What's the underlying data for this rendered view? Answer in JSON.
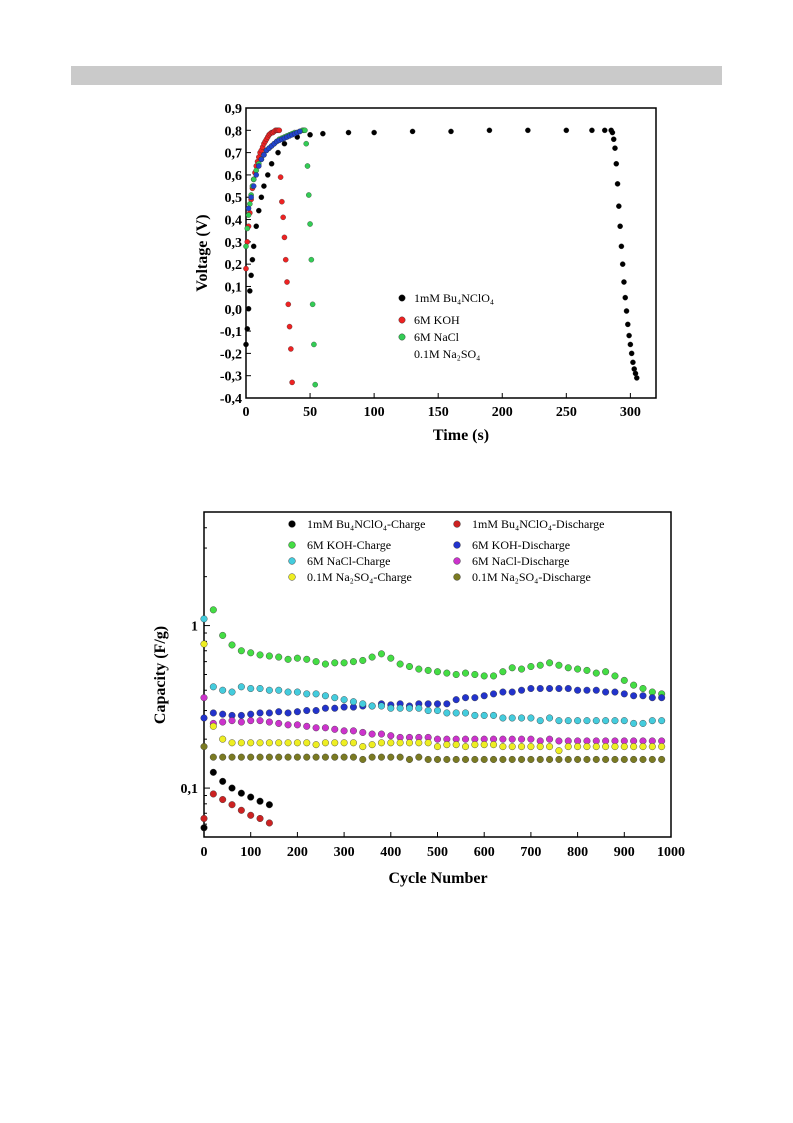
{
  "chart_data": [
    {
      "type": "scatter",
      "xlabel": "Time (s)",
      "ylabel": "Voltage (V)",
      "xlim": [
        0,
        320
      ],
      "ylim": [
        -0.4,
        0.9
      ],
      "xticks": [
        "0",
        "50",
        "100",
        "150",
        "200",
        "250",
        "300"
      ],
      "yticks": [
        "0,9",
        "0,8",
        "0,7",
        "0,6",
        "0,5",
        "0,4",
        "0,3",
        "0,2",
        "0,1",
        "0,0",
        "-0,1",
        "-0,2",
        "-0,3",
        "-0,4"
      ],
      "legend_position": "center-right",
      "series": [
        {
          "name": "1mM Bu₄NClO₄",
          "color": "#000000",
          "x": [
            0,
            1,
            2,
            3,
            4,
            5,
            6,
            8,
            10,
            12,
            14,
            17,
            20,
            25,
            30,
            40,
            50,
            60,
            80,
            100,
            130,
            160,
            190,
            220,
            250,
            270,
            280,
            285,
            286,
            287,
            288,
            289,
            290,
            291,
            292,
            293,
            294,
            295,
            296,
            297,
            298,
            299,
            300,
            301,
            302,
            303,
            304,
            305
          ],
          "y": [
            -0.16,
            -0.09,
            0.0,
            0.08,
            0.15,
            0.22,
            0.28,
            0.37,
            0.44,
            0.5,
            0.55,
            0.6,
            0.65,
            0.7,
            0.74,
            0.77,
            0.78,
            0.785,
            0.79,
            0.79,
            0.795,
            0.795,
            0.8,
            0.8,
            0.8,
            0.8,
            0.8,
            0.8,
            0.79,
            0.76,
            0.72,
            0.65,
            0.56,
            0.46,
            0.37,
            0.28,
            0.2,
            0.12,
            0.05,
            -0.01,
            -0.07,
            -0.12,
            -0.16,
            -0.2,
            -0.24,
            -0.27,
            -0.29,
            -0.31
          ]
        },
        {
          "name": "6M KOH",
          "color": "#ee2222",
          "x": [
            0,
            1,
            2,
            3,
            4,
            5,
            6,
            7,
            8,
            9,
            10,
            11,
            12,
            13,
            14,
            15,
            16,
            17,
            18,
            19,
            20,
            21,
            22,
            23,
            24,
            25,
            26,
            27,
            28,
            29,
            30,
            31,
            32,
            33,
            34,
            35,
            36
          ],
          "y": [
            0.18,
            0.3,
            0.37,
            0.43,
            0.49,
            0.54,
            0.58,
            0.61,
            0.64,
            0.66,
            0.68,
            0.7,
            0.71,
            0.725,
            0.74,
            0.75,
            0.76,
            0.77,
            0.78,
            0.785,
            0.79,
            0.79,
            0.795,
            0.8,
            0.8,
            0.8,
            0.8,
            0.59,
            0.48,
            0.41,
            0.32,
            0.22,
            0.12,
            0.02,
            -0.08,
            -0.18,
            -0.33
          ]
        },
        {
          "name": "6M NaCl",
          "color": "#33cc55",
          "x": [
            0,
            1,
            2,
            3,
            4,
            5,
            6,
            8,
            10,
            12,
            14,
            16,
            18,
            20,
            22,
            24,
            26,
            28,
            30,
            32,
            34,
            36,
            38,
            40,
            42,
            44,
            45,
            46,
            47,
            48,
            49,
            50,
            51,
            52,
            53,
            54
          ],
          "y": [
            0.28,
            0.36,
            0.42,
            0.47,
            0.51,
            0.55,
            0.58,
            0.62,
            0.65,
            0.67,
            0.69,
            0.71,
            0.72,
            0.73,
            0.74,
            0.75,
            0.76,
            0.765,
            0.77,
            0.775,
            0.78,
            0.785,
            0.79,
            0.79,
            0.795,
            0.8,
            0.8,
            0.8,
            0.74,
            0.64,
            0.51,
            0.38,
            0.22,
            0.02,
            -0.16,
            -0.34
          ]
        },
        {
          "name": "0.1M Na₂SO₄",
          "color": "#2244cc",
          "x": [
            2,
            4,
            6,
            8,
            10,
            12,
            14,
            16,
            18,
            20,
            22,
            24,
            26,
            28,
            30,
            32,
            34,
            36,
            38,
            40,
            42
          ],
          "y": [
            0.45,
            0.5,
            0.55,
            0.6,
            0.64,
            0.67,
            0.69,
            0.71,
            0.72,
            0.73,
            0.74,
            0.75,
            0.755,
            0.76,
            0.765,
            0.77,
            0.775,
            0.78,
            0.785,
            0.79,
            0.795
          ]
        }
      ]
    },
    {
      "type": "scatter",
      "xlabel": "Cycle Number",
      "ylabel": "Capacity (F/g)",
      "y_scale": "log",
      "xlim": [
        0,
        1000
      ],
      "ylim": [
        0.05,
        5
      ],
      "xticks": [
        "0",
        "100",
        "200",
        "300",
        "400",
        "500",
        "600",
        "700",
        "800",
        "900",
        "1000"
      ],
      "yticks": [
        "1",
        "0,1"
      ],
      "legend_position": "top",
      "series": [
        {
          "name": "1mM Bu₄NClO₄-Charge",
          "color": "#000000",
          "x": [
            0,
            20,
            40,
            60,
            80,
            100,
            120,
            140
          ],
          "y": [
            0.057,
            0.125,
            0.11,
            0.1,
            0.093,
            0.088,
            0.083,
            0.079
          ]
        },
        {
          "name": "1mM Bu₄NClO₄-Discharge",
          "color": "#cc2222",
          "x": [
            0,
            20,
            40,
            60,
            80,
            100,
            120,
            140
          ],
          "y": [
            0.065,
            0.092,
            0.085,
            0.079,
            0.073,
            0.068,
            0.065,
            0.061
          ]
        },
        {
          "name": "6M KOH-Charge",
          "color": "#44dd44",
          "x": [
            20,
            40,
            60,
            80,
            100,
            120,
            140,
            160,
            180,
            200,
            220,
            240,
            260,
            280,
            300,
            320,
            340,
            360,
            380,
            400,
            420,
            440,
            460,
            480,
            500,
            520,
            540,
            560,
            580,
            600,
            620,
            640,
            660,
            680,
            700,
            720,
            740,
            760,
            780,
            800,
            820,
            840,
            860,
            880,
            900,
            920,
            940,
            960,
            980
          ],
          "y": [
            1.25,
            0.87,
            0.76,
            0.7,
            0.68,
            0.66,
            0.65,
            0.64,
            0.62,
            0.63,
            0.62,
            0.6,
            0.58,
            0.59,
            0.59,
            0.6,
            0.61,
            0.64,
            0.67,
            0.63,
            0.58,
            0.56,
            0.54,
            0.53,
            0.52,
            0.51,
            0.5,
            0.51,
            0.5,
            0.49,
            0.49,
            0.52,
            0.55,
            0.54,
            0.56,
            0.57,
            0.59,
            0.57,
            0.55,
            0.54,
            0.53,
            0.51,
            0.52,
            0.49,
            0.46,
            0.43,
            0.41,
            0.39,
            0.38
          ]
        },
        {
          "name": "6M KOH-Discharge",
          "color": "#2233cc",
          "x": [
            0,
            20,
            40,
            60,
            80,
            100,
            120,
            140,
            160,
            180,
            200,
            220,
            240,
            260,
            280,
            300,
            320,
            340,
            360,
            380,
            400,
            420,
            440,
            460,
            480,
            500,
            520,
            540,
            560,
            580,
            600,
            620,
            640,
            660,
            680,
            700,
            720,
            740,
            760,
            780,
            800,
            820,
            840,
            860,
            880,
            900,
            920,
            940,
            960,
            980
          ],
          "y": [
            0.27,
            0.29,
            0.285,
            0.28,
            0.28,
            0.285,
            0.29,
            0.29,
            0.295,
            0.29,
            0.295,
            0.3,
            0.3,
            0.31,
            0.31,
            0.315,
            0.315,
            0.32,
            0.32,
            0.33,
            0.325,
            0.33,
            0.32,
            0.33,
            0.33,
            0.33,
            0.33,
            0.35,
            0.36,
            0.36,
            0.37,
            0.38,
            0.39,
            0.39,
            0.4,
            0.41,
            0.41,
            0.41,
            0.41,
            0.41,
            0.4,
            0.4,
            0.4,
            0.39,
            0.39,
            0.38,
            0.37,
            0.37,
            0.36,
            0.36
          ]
        },
        {
          "name": "6M NaCl-Charge",
          "color": "#44ccdd",
          "x": [
            0,
            20,
            40,
            60,
            80,
            100,
            120,
            140,
            160,
            180,
            200,
            220,
            240,
            260,
            280,
            300,
            320,
            340,
            360,
            380,
            400,
            420,
            440,
            460,
            480,
            500,
            520,
            540,
            560,
            580,
            600,
            620,
            640,
            660,
            680,
            700,
            720,
            740,
            760,
            780,
            800,
            820,
            840,
            860,
            880,
            900,
            920,
            940,
            960,
            980
          ],
          "y": [
            1.1,
            0.42,
            0.4,
            0.39,
            0.42,
            0.41,
            0.41,
            0.4,
            0.4,
            0.39,
            0.39,
            0.38,
            0.38,
            0.37,
            0.36,
            0.35,
            0.34,
            0.33,
            0.32,
            0.32,
            0.31,
            0.31,
            0.31,
            0.31,
            0.3,
            0.3,
            0.29,
            0.29,
            0.29,
            0.28,
            0.28,
            0.28,
            0.27,
            0.27,
            0.27,
            0.27,
            0.26,
            0.27,
            0.26,
            0.26,
            0.26,
            0.26,
            0.26,
            0.26,
            0.26,
            0.26,
            0.25,
            0.25,
            0.26,
            0.26
          ]
        },
        {
          "name": "6M NaCl-Discharge",
          "color": "#cc33cc",
          "x": [
            0,
            20,
            40,
            60,
            80,
            100,
            120,
            140,
            160,
            180,
            200,
            220,
            240,
            260,
            280,
            300,
            320,
            340,
            360,
            380,
            400,
            420,
            440,
            460,
            480,
            500,
            520,
            540,
            560,
            580,
            600,
            620,
            640,
            660,
            680,
            700,
            720,
            740,
            760,
            780,
            800,
            820,
            840,
            860,
            880,
            900,
            920,
            940,
            960,
            980
          ],
          "y": [
            0.36,
            0.25,
            0.255,
            0.26,
            0.255,
            0.26,
            0.26,
            0.255,
            0.25,
            0.245,
            0.245,
            0.24,
            0.235,
            0.235,
            0.23,
            0.225,
            0.225,
            0.22,
            0.215,
            0.215,
            0.21,
            0.205,
            0.205,
            0.205,
            0.205,
            0.2,
            0.2,
            0.2,
            0.2,
            0.2,
            0.2,
            0.2,
            0.2,
            0.2,
            0.2,
            0.2,
            0.195,
            0.2,
            0.195,
            0.195,
            0.195,
            0.195,
            0.195,
            0.195,
            0.195,
            0.195,
            0.195,
            0.195,
            0.195,
            0.195
          ]
        },
        {
          "name": "0.1M Na₂SO₄-Charge",
          "color": "#eeee22",
          "x": [
            0,
            20,
            40,
            60,
            80,
            100,
            120,
            140,
            160,
            180,
            200,
            220,
            240,
            260,
            280,
            300,
            320,
            340,
            360,
            380,
            400,
            420,
            440,
            460,
            480,
            500,
            520,
            540,
            560,
            580,
            600,
            620,
            640,
            660,
            680,
            700,
            720,
            740,
            760,
            780,
            800,
            820,
            840,
            860,
            880,
            900,
            920,
            940,
            960,
            980
          ],
          "y": [
            0.77,
            0.24,
            0.2,
            0.19,
            0.19,
            0.19,
            0.19,
            0.19,
            0.19,
            0.19,
            0.19,
            0.19,
            0.185,
            0.19,
            0.19,
            0.19,
            0.19,
            0.18,
            0.185,
            0.19,
            0.19,
            0.19,
            0.19,
            0.19,
            0.19,
            0.18,
            0.185,
            0.185,
            0.18,
            0.185,
            0.185,
            0.185,
            0.18,
            0.18,
            0.18,
            0.18,
            0.18,
            0.18,
            0.17,
            0.18,
            0.18,
            0.18,
            0.18,
            0.18,
            0.18,
            0.18,
            0.18,
            0.18,
            0.18,
            0.18
          ]
        },
        {
          "name": "0.1M Na₂SO₄-Discharge",
          "color": "#7a7a22",
          "x": [
            0,
            20,
            40,
            60,
            80,
            100,
            120,
            140,
            160,
            180,
            200,
            220,
            240,
            260,
            280,
            300,
            320,
            340,
            360,
            380,
            400,
            420,
            440,
            460,
            480,
            500,
            520,
            540,
            560,
            580,
            600,
            620,
            640,
            660,
            680,
            700,
            720,
            740,
            760,
            780,
            800,
            820,
            840,
            860,
            880,
            900,
            920,
            940,
            960,
            980
          ],
          "y": [
            0.18,
            0.155,
            0.155,
            0.155,
            0.155,
            0.155,
            0.155,
            0.155,
            0.155,
            0.155,
            0.155,
            0.155,
            0.155,
            0.155,
            0.155,
            0.155,
            0.155,
            0.15,
            0.155,
            0.155,
            0.155,
            0.155,
            0.15,
            0.155,
            0.15,
            0.15,
            0.15,
            0.15,
            0.15,
            0.15,
            0.15,
            0.15,
            0.15,
            0.15,
            0.15,
            0.15,
            0.15,
            0.15,
            0.15,
            0.15,
            0.15,
            0.15,
            0.15,
            0.15,
            0.15,
            0.15,
            0.15,
            0.15,
            0.15,
            0.15
          ]
        }
      ]
    }
  ]
}
